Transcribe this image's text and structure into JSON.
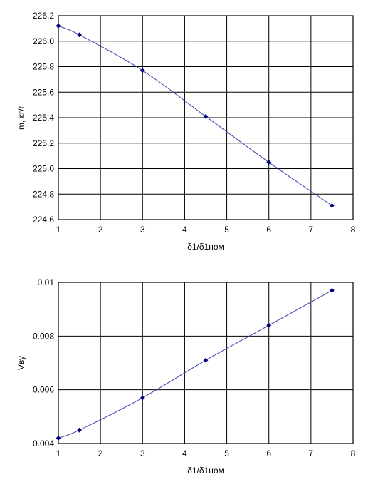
{
  "chart_data": [
    {
      "type": "line",
      "title": "",
      "xlabel": "δ1/δ1ном",
      "ylabel": "m, кг/г",
      "xlim": [
        1,
        8
      ],
      "ylim": [
        224.6,
        226.2
      ],
      "xticks": [
        1,
        2,
        3,
        4,
        5,
        6,
        7,
        8
      ],
      "xtick_labels": [
        "1",
        "2",
        "3",
        "4",
        "5",
        "6",
        "7",
        "8"
      ],
      "yticks": [
        224.6,
        224.8,
        225.0,
        225.2,
        225.4,
        225.6,
        225.8,
        226.0,
        226.2
      ],
      "ytick_labels": [
        "224.6",
        "224.8",
        "225.0",
        "225.2",
        "225.4",
        "225.6",
        "225.8",
        "226.0",
        "226.2"
      ],
      "grid": true,
      "smooth": true,
      "line_color": "#3b3fa8",
      "marker_color": "#000080",
      "series": [
        {
          "x": [
            1,
            1.5,
            3,
            4.5,
            6,
            7.5
          ],
          "y": [
            226.12,
            226.05,
            225.77,
            225.41,
            225.05,
            224.71
          ]
        }
      ]
    },
    {
      "type": "line",
      "title": "",
      "xlabel": "δ1/δ1ном",
      "ylabel": "Vву",
      "xlim": [
        1,
        8
      ],
      "ylim": [
        0.004,
        0.01
      ],
      "xticks": [
        1,
        2,
        3,
        4,
        5,
        6,
        7,
        8
      ],
      "xtick_labels": [
        "1",
        "2",
        "3",
        "4",
        "5",
        "6",
        "7",
        "8"
      ],
      "yticks": [
        0.004,
        0.006,
        0.008,
        0.01
      ],
      "ytick_labels": [
        "0.004",
        "0.006",
        "0.008",
        "0.01"
      ],
      "grid": true,
      "smooth": true,
      "line_color": "#3b3fa8",
      "marker_color": "#000080",
      "series": [
        {
          "x": [
            1,
            1.5,
            3,
            4.5,
            6,
            7.5
          ],
          "y": [
            0.0042,
            0.0045,
            0.0057,
            0.0071,
            0.0084,
            0.0097
          ]
        }
      ]
    }
  ]
}
